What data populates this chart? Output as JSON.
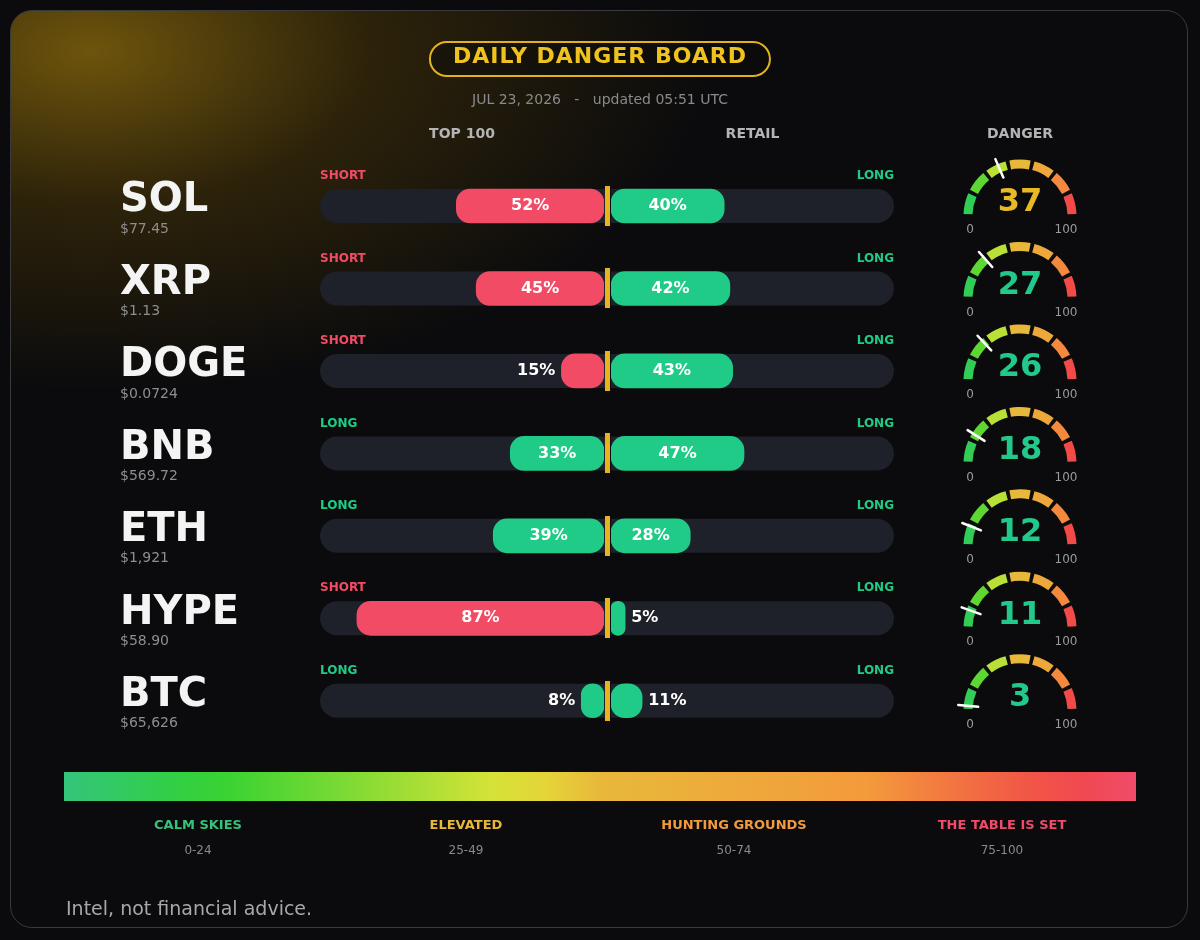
{
  "chart_data": [
    {
      "type": "other",
      "title": "DAILY DANGER BOARD",
      "subtitle": "JUL 23, 2026   -   updated 05:51 UTC",
      "annotations": [
        "Intel, not financial advice."
      ]
    },
    {
      "type": "bar",
      "orientation": "horizontal",
      "title": "TOP 100",
      "categories": [
        "SOL",
        "XRP",
        "DOGE",
        "BNB",
        "ETH",
        "HYPE",
        "BTC"
      ],
      "values": [
        52,
        45,
        15,
        33,
        39,
        87,
        8
      ],
      "colors": [
        "#f24b65",
        "#f24b65",
        "#f24b65",
        "#1fcb86",
        "#1fcb86",
        "#f24b65",
        "#1fcb86"
      ],
      "value_labels": [
        "52%",
        "45%",
        "15%",
        "33%",
        "39%",
        "87%",
        "8%"
      ],
      "xlim": [
        100,
        0
      ],
      "tick_labels": "y",
      "annotations": [
        "SHORT",
        "SHORT",
        "SHORT",
        "LONG",
        "LONG",
        "SHORT",
        "LONG",
        "$77.45",
        "$1.13",
        "$0.0724",
        "$569.72",
        "$1,921",
        "$58.90",
        "$65,626"
      ]
    },
    {
      "type": "bar",
      "orientation": "horizontal",
      "title": "RETAIL",
      "categories": [
        null,
        null,
        null,
        null,
        null,
        null,
        null
      ],
      "values": [
        40,
        42,
        43,
        47,
        28,
        5,
        11
      ],
      "color": "#1fcb86",
      "value_labels": [
        "40%",
        "42%",
        "43%",
        "47%",
        "28%",
        "5%",
        "11%"
      ],
      "xlim": [
        0,
        100
      ],
      "tick_labels": false,
      "annotations": [
        "LONG",
        "LONG",
        "LONG",
        "LONG",
        "LONG",
        "LONG",
        "LONG"
      ]
    },
    {
      "type": "other",
      "title": "DANGER",
      "values": [
        37,
        27,
        26,
        18,
        12,
        11,
        3
      ],
      "colors": [
        "#e8b825",
        "#22c98a",
        "#22c98a",
        "#22c98a",
        "#22c98a",
        "#22c98a",
        "#22c98a"
      ],
      "data_labels": true,
      "annotations": [
        "0",
        "100"
      ]
    },
    {
      "type": "other",
      "categories": [
        "CALM SKIES",
        "ELEVATED",
        "HUNTING GROUNDS",
        "THE TABLE IS SET"
      ],
      "colors": [
        "#34c47a",
        "#e8b83a",
        "#f39a3c",
        "#f04c6a"
      ],
      "annotations": [
        "0-24",
        "25-49",
        "50-74",
        "75-100"
      ]
    }
  ]
}
